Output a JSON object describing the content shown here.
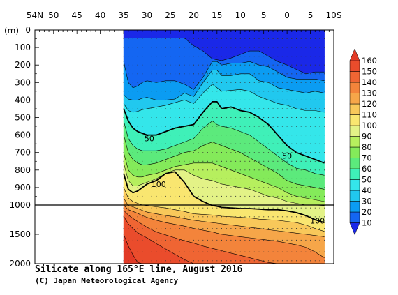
{
  "chart_data": {
    "type": "heatmap",
    "title": "Silicate along 165°E line, August 2016",
    "credit": "(C) Japan Meteorological Agency",
    "x_axis": {
      "labels": [
        "54N",
        "50",
        "45",
        "40",
        "35",
        "30",
        "25",
        "20",
        "15",
        "10",
        "5",
        "0",
        "5",
        "10S"
      ],
      "values": [
        54,
        50,
        45,
        40,
        35,
        30,
        25,
        20,
        15,
        10,
        5,
        0,
        -5,
        -10
      ],
      "range": [
        54,
        -10
      ],
      "data_range": [
        35,
        -8
      ]
    },
    "y_axis": {
      "unit_label": "(m)",
      "labels": [
        "0",
        "100",
        "200",
        "300",
        "400",
        "500",
        "600",
        "700",
        "800",
        "900",
        "1000",
        "1500",
        "2000"
      ],
      "values": [
        0,
        100,
        200,
        300,
        400,
        500,
        600,
        700,
        800,
        900,
        1000,
        1500,
        2000
      ],
      "scale": "piecewise linear: 0-1000 m expanded, 1000-2000 m compressed",
      "range": [
        0,
        2000
      ]
    },
    "colorbar": {
      "labels": [
        "160",
        "150",
        "140",
        "130",
        "120",
        "110",
        "100",
        "90",
        "80",
        "70",
        "60",
        "50",
        "40",
        "30",
        "20",
        "10"
      ],
      "levels": [
        10,
        20,
        30,
        40,
        50,
        60,
        70,
        80,
        90,
        100,
        110,
        120,
        130,
        140,
        150,
        160
      ],
      "colors": [
        "#1a28e8",
        "#1466f2",
        "#0b9cf2",
        "#21c8ef",
        "#34e6ea",
        "#3ff0b8",
        "#5cea7c",
        "#84ea5a",
        "#b6ef5e",
        "#e3f287",
        "#f9e670",
        "#f8c85a",
        "#f6a649",
        "#f3843b",
        "#ef6533",
        "#ea4c2c",
        "#e23a26"
      ],
      "extend": "both"
    },
    "contour_labels": [
      {
        "text": "50",
        "lat": 29.5,
        "depth": 620
      },
      {
        "text": "100",
        "lat": 27.5,
        "depth": 880
      },
      {
        "text": "50",
        "lat": 0,
        "depth": 720
      },
      {
        "text": "100",
        "lat": -6.5,
        "depth": 1270
      }
    ],
    "isolines": {
      "lats": [
        35,
        34,
        33,
        32,
        31,
        30,
        28,
        26,
        24,
        22,
        20,
        18,
        16,
        15,
        14,
        12,
        10,
        8,
        6,
        4,
        2,
        0,
        -2,
        -4,
        -6,
        -8
      ],
      "10": [
        45,
        45,
        45,
        45,
        45,
        45,
        45,
        45,
        45,
        45,
        90,
        120,
        165,
        170,
        175,
        160,
        140,
        120,
        120,
        150,
        180,
        200,
        225,
        250,
        240,
        240
      ],
      "20": [
        180,
        300,
        330,
        320,
        300,
        290,
        300,
        290,
        290,
        310,
        340,
        270,
        180,
        180,
        200,
        190,
        190,
        180,
        200,
        210,
        240,
        270,
        280,
        280,
        280,
        290
      ],
      "30": [
        370,
        395,
        400,
        400,
        390,
        385,
        400,
        400,
        395,
        360,
        380,
        300,
        230,
        230,
        260,
        260,
        250,
        250,
        290,
        300,
        330,
        340,
        350,
        360,
        350,
        360
      ],
      "40": [
        420,
        460,
        470,
        465,
        455,
        450,
        440,
        430,
        415,
        400,
        420,
        360,
        310,
        330,
        350,
        345,
        340,
        350,
        380,
        400,
        420,
        430,
        450,
        460,
        460,
        470
      ],
      "50": [
        450,
        520,
        560,
        580,
        590,
        600,
        600,
        580,
        560,
        550,
        540,
        470,
        410,
        410,
        450,
        440,
        460,
        470,
        500,
        540,
        600,
        660,
        700,
        720,
        740,
        760
      ],
      "60": [
        520,
        620,
        660,
        680,
        690,
        690,
        690,
        680,
        660,
        640,
        620,
        560,
        520,
        540,
        550,
        560,
        580,
        600,
        640,
        680,
        720,
        760,
        790,
        800,
        820,
        830
      ],
      "70": [
        600,
        700,
        740,
        760,
        770,
        770,
        760,
        740,
        720,
        700,
        690,
        660,
        640,
        650,
        660,
        680,
        700,
        730,
        760,
        790,
        820,
        860,
        880,
        890,
        900,
        910
      ],
      "80": [
        700,
        800,
        830,
        840,
        840,
        830,
        820,
        800,
        780,
        770,
        760,
        760,
        760,
        770,
        780,
        800,
        820,
        840,
        860,
        880,
        900,
        930,
        950,
        960,
        970,
        980
      ],
      "90": [
        760,
        860,
        890,
        890,
        880,
        870,
        850,
        820,
        800,
        800,
        830,
        850,
        860,
        870,
        880,
        890,
        900,
        910,
        930,
        950,
        960,
        980,
        990,
        1000,
        1000,
        1010
      ],
      "100": [
        820,
        910,
        930,
        920,
        900,
        880,
        860,
        820,
        810,
        870,
        950,
        980,
        1010,
        1020,
        1040,
        1050,
        1060,
        1060,
        1070,
        1080,
        1080,
        1100,
        1130,
        1180,
        1250,
        1300
      ],
      "110": [
        900,
        960,
        980,
        990,
        1000,
        1010,
        1030,
        1050,
        1080,
        1110,
        1150,
        1160,
        1170,
        1180,
        1190,
        1200,
        1210,
        1220,
        1240,
        1250,
        1260,
        1280,
        1300,
        1340,
        1400,
        1450
      ],
      "120": [
        960,
        1010,
        1030,
        1060,
        1090,
        1120,
        1150,
        1180,
        1200,
        1230,
        1260,
        1280,
        1300,
        1310,
        1320,
        1340,
        1360,
        1380,
        1400,
        1420,
        1440,
        1460,
        1480,
        1500,
        1520,
        1540
      ],
      "130": [
        1000,
        1080,
        1110,
        1140,
        1180,
        1210,
        1260,
        1300,
        1330,
        1360,
        1400,
        1430,
        1460,
        1480,
        1500,
        1520,
        1540,
        1560,
        1580,
        1600,
        1620,
        1650,
        1680,
        1720,
        1800,
        1900
      ],
      "140": [
        1090,
        1170,
        1230,
        1280,
        1330,
        1380,
        1460,
        1510,
        1560,
        1610,
        1650,
        1700,
        1740,
        1760,
        1780,
        1820,
        1860,
        1900,
        1940,
        1980,
        2000,
        2000,
        2000,
        2000,
        2000,
        2000
      ],
      "150": [
        1190,
        1320,
        1400,
        1470,
        1520,
        1560,
        1660,
        1750,
        1840,
        1930,
        2000,
        2000,
        2000,
        2000,
        2000,
        2000,
        2000,
        2000,
        2000,
        2000,
        2000,
        2000,
        2000,
        2000,
        2000,
        2000
      ],
      "160": [
        1500,
        1700,
        1850,
        1980,
        2000,
        2000,
        2000,
        2000,
        2000,
        2000,
        2000,
        2000,
        2000,
        2000,
        2000,
        2000,
        2000,
        2000,
        2000,
        2000,
        2000,
        2000,
        2000,
        2000,
        2000,
        2000
      ]
    },
    "bold_contours": [
      50,
      100
    ],
    "grid": false,
    "reference_line_depth": 1000
  }
}
